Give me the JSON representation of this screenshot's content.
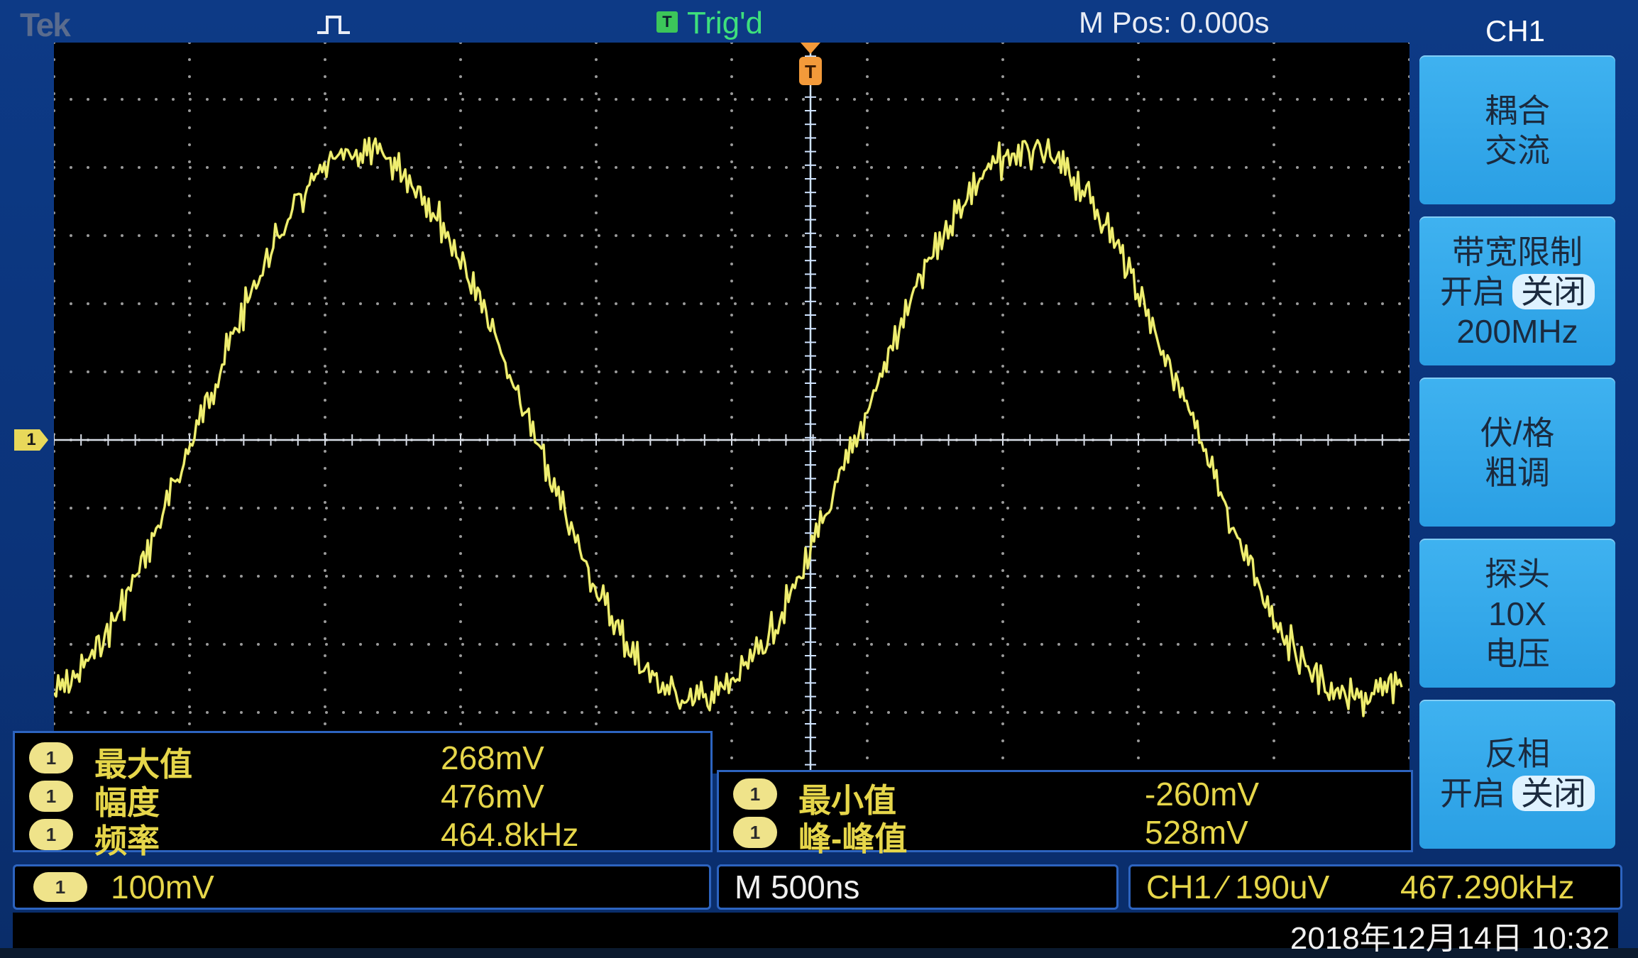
{
  "header": {
    "logo": "Tek",
    "trigger_icon_letter": "T",
    "trigger_status": "Trig'd",
    "m_pos": "M Pos: 0.000s"
  },
  "waveform": {
    "channel_marker": "1",
    "trigger_marker": "T",
    "trace_color": "#e8e85a",
    "grid_color": "#9a9a9a",
    "cursor_color": "#cfe3ff"
  },
  "menu": {
    "title": "CH1",
    "coupling": {
      "line1": "耦合",
      "line2": "交流"
    },
    "bandwidth": {
      "line1": "带宽限制",
      "on": "开启",
      "off": "关闭",
      "line3": "200MHz"
    },
    "volts_div": {
      "line1": "伏/格",
      "line2": "粗调"
    },
    "probe": {
      "line1": "探头",
      "line2": "10X",
      "line3": "电压"
    },
    "invert": {
      "line1": "反相",
      "on": "开启",
      "off": "关闭"
    }
  },
  "measurements": {
    "left": [
      {
        "ch": "1",
        "label": "最大值",
        "value": "268mV"
      },
      {
        "ch": "1",
        "label": "幅度",
        "value": "476mV"
      },
      {
        "ch": "1",
        "label": "频率",
        "value": "464.8kHz"
      }
    ],
    "right": [
      {
        "ch": "1",
        "label": "最小值",
        "value": "-260mV"
      },
      {
        "ch": "1",
        "label": "峰-峰值",
        "value": "528mV"
      }
    ]
  },
  "status": {
    "ch": "1",
    "scale": "100mV",
    "timebase": "M 500ns",
    "trigger": "CH1 ⁄ 190uV",
    "trigger_freq": "467.290kHz",
    "datetime": "2018年12月14日 10:32"
  }
}
